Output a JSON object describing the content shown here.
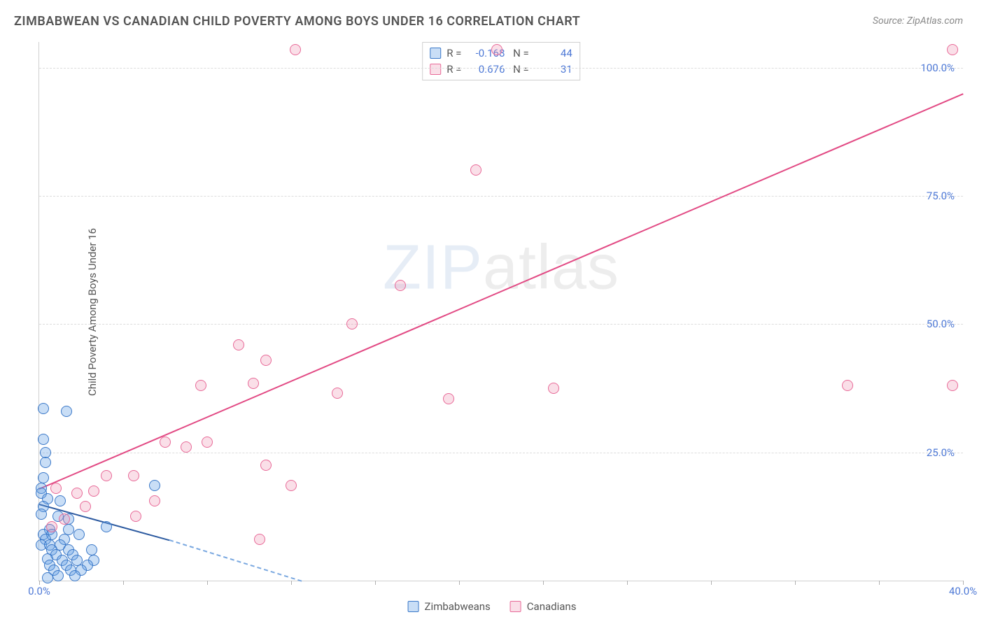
{
  "title": "ZIMBABWEAN VS CANADIAN CHILD POVERTY AMONG BOYS UNDER 16 CORRELATION CHART",
  "source_label": "Source: ",
  "source_name": "ZipAtlas.com",
  "ylabel": "Child Poverty Among Boys Under 16",
  "watermark": {
    "bold": "ZIP",
    "light": "atlas"
  },
  "chart": {
    "type": "scatter",
    "xlim": [
      0,
      44
    ],
    "ylim": [
      0,
      105
    ],
    "xtick_positions": [
      0,
      4,
      8,
      12,
      16,
      20,
      24,
      28,
      32,
      36,
      40,
      44
    ],
    "xtick_labels": [
      "0.0%",
      "",
      "",
      "",
      "",
      "",
      "",
      "",
      "",
      "",
      "",
      "40.0%"
    ],
    "ytick_positions": [
      25,
      50,
      75,
      100
    ],
    "ytick_labels": [
      "25.0%",
      "50.0%",
      "75.0%",
      "100.0%"
    ],
    "grid_color": "#dcdcdc",
    "background_color": "#ffffff",
    "series": [
      {
        "name": "Zimbabweans",
        "color_fill": "rgba(100,160,230,0.35)",
        "color_stroke": "#3a78c8",
        "marker_size": 16,
        "R": "-0.168",
        "N": "44",
        "trend": {
          "x1": 0,
          "y1": 15,
          "x2": 6.2,
          "y2": 8,
          "color": "#2c5aa0",
          "dash_ext": {
            "x2": 12.5,
            "y2": 0
          }
        },
        "points": [
          [
            0.2,
            33.5
          ],
          [
            1.3,
            33.0
          ],
          [
            0.2,
            27.5
          ],
          [
            0.3,
            25.0
          ],
          [
            0.3,
            23.0
          ],
          [
            0.2,
            20.0
          ],
          [
            5.5,
            18.5
          ],
          [
            0.1,
            18.0
          ],
          [
            0.1,
            17.0
          ],
          [
            0.4,
            16.0
          ],
          [
            1.0,
            15.5
          ],
          [
            0.2,
            14.5
          ],
          [
            0.1,
            13.0
          ],
          [
            0.9,
            12.5
          ],
          [
            1.4,
            12.0
          ],
          [
            3.2,
            10.5
          ],
          [
            0.5,
            10.0
          ],
          [
            1.4,
            10.0
          ],
          [
            0.2,
            9.0
          ],
          [
            0.6,
            9.0
          ],
          [
            1.9,
            9.0
          ],
          [
            0.3,
            8.0
          ],
          [
            1.2,
            8.0
          ],
          [
            0.1,
            7.0
          ],
          [
            0.5,
            7.0
          ],
          [
            1.0,
            7.0
          ],
          [
            0.6,
            6.0
          ],
          [
            1.4,
            6.0
          ],
          [
            2.5,
            6.0
          ],
          [
            0.8,
            5.0
          ],
          [
            1.6,
            5.0
          ],
          [
            0.4,
            4.2
          ],
          [
            1.1,
            4.0
          ],
          [
            1.8,
            4.0
          ],
          [
            2.6,
            4.0
          ],
          [
            0.5,
            3.0
          ],
          [
            1.3,
            3.0
          ],
          [
            2.3,
            3.0
          ],
          [
            0.7,
            2.0
          ],
          [
            1.5,
            2.0
          ],
          [
            2.0,
            2.0
          ],
          [
            0.9,
            1.0
          ],
          [
            1.7,
            1.0
          ],
          [
            0.4,
            0.5
          ]
        ]
      },
      {
        "name": "Canadians",
        "color_fill": "rgba(240,150,180,0.30)",
        "color_stroke": "#e86a98",
        "marker_size": 16,
        "R": "0.676",
        "N": "31",
        "trend": {
          "x1": 0,
          "y1": 18,
          "x2": 44,
          "y2": 95,
          "color": "#e24a84"
        },
        "points": [
          [
            12.2,
            103.5
          ],
          [
            21.8,
            103.5
          ],
          [
            43.5,
            103.5
          ],
          [
            20.8,
            80.0
          ],
          [
            17.2,
            57.5
          ],
          [
            14.9,
            50.0
          ],
          [
            9.5,
            46.0
          ],
          [
            10.8,
            43.0
          ],
          [
            38.5,
            38.0
          ],
          [
            43.5,
            38.0
          ],
          [
            7.7,
            38.0
          ],
          [
            10.2,
            38.5
          ],
          [
            14.2,
            36.5
          ],
          [
            19.5,
            35.5
          ],
          [
            24.5,
            37.5
          ],
          [
            6.0,
            27.0
          ],
          [
            7.0,
            26.0
          ],
          [
            8.0,
            27.0
          ],
          [
            10.8,
            22.5
          ],
          [
            3.2,
            20.5
          ],
          [
            4.5,
            20.5
          ],
          [
            5.5,
            15.5
          ],
          [
            12.0,
            18.5
          ],
          [
            0.8,
            18.0
          ],
          [
            1.8,
            17.0
          ],
          [
            2.6,
            17.5
          ],
          [
            2.2,
            14.5
          ],
          [
            1.2,
            12.0
          ],
          [
            4.6,
            12.5
          ],
          [
            0.6,
            10.5
          ],
          [
            10.5,
            8.0
          ]
        ]
      }
    ],
    "legend_bottom": [
      {
        "swatch": "blue",
        "label": "Zimbabweans"
      },
      {
        "swatch": "pink",
        "label": "Canadians"
      }
    ]
  }
}
